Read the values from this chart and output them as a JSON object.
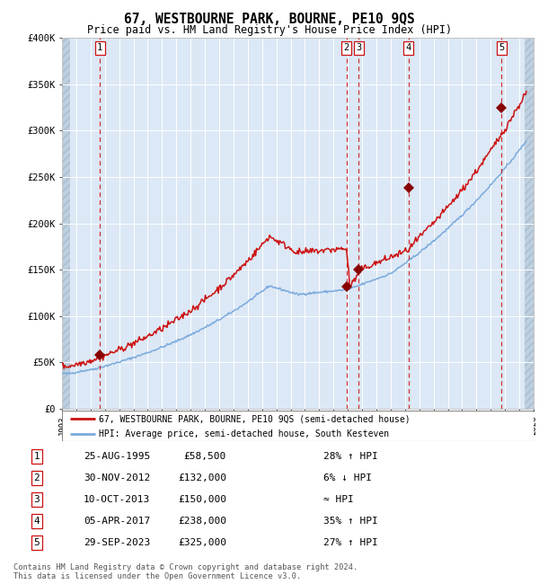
{
  "title": "67, WESTBOURNE PARK, BOURNE, PE10 9QS",
  "subtitle": "Price paid vs. HM Land Registry's House Price Index (HPI)",
  "legend_line1": "67, WESTBOURNE PARK, BOURNE, PE10 9QS (semi-detached house)",
  "legend_line2": "HPI: Average price, semi-detached house, South Kesteven",
  "footer_line1": "Contains HM Land Registry data © Crown copyright and database right 2024.",
  "footer_line2": "This data is licensed under the Open Government Licence v3.0.",
  "xmin": 1993,
  "xmax": 2026,
  "ymin": 0,
  "ymax": 400000,
  "yticks": [
    0,
    50000,
    100000,
    150000,
    200000,
    250000,
    300000,
    350000,
    400000
  ],
  "sale_dates_x": [
    1995.648,
    2012.914,
    2013.769,
    2017.257,
    2023.747
  ],
  "sale_prices_y": [
    58500,
    132000,
    150000,
    238000,
    325000
  ],
  "sale_labels": [
    "1",
    "2",
    "3",
    "4",
    "5"
  ],
  "sale_table": [
    [
      "1",
      "25-AUG-1995",
      "£58,500",
      "28% ↑ HPI"
    ],
    [
      "2",
      "30-NOV-2012",
      "£132,000",
      "6% ↓ HPI"
    ],
    [
      "3",
      "10-OCT-2013",
      "£150,000",
      "≈ HPI"
    ],
    [
      "4",
      "05-APR-2017",
      "£238,000",
      "35% ↑ HPI"
    ],
    [
      "5",
      "29-SEP-2023",
      "£325,000",
      "27% ↑ HPI"
    ]
  ],
  "hpi_color": "#7aaadd",
  "price_color": "#cc1111",
  "dot_color": "#880000",
  "vline_color": "#cc1111",
  "bg_color": "#dce8f5",
  "grid_color": "#ffffff",
  "hatch_color": "#bdd0e0"
}
